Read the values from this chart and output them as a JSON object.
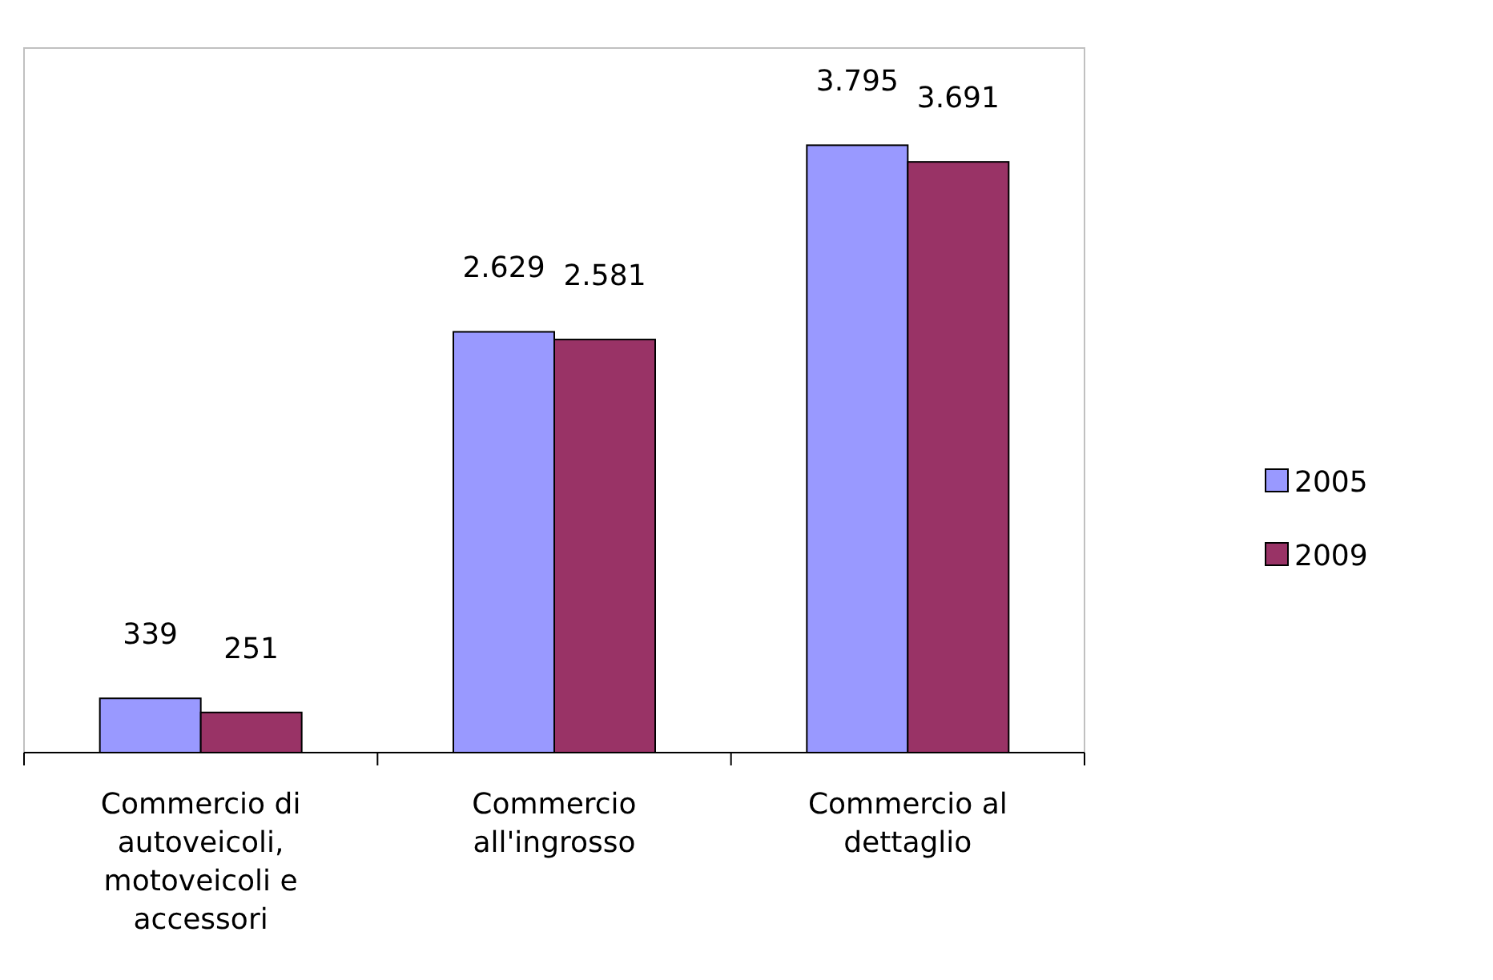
{
  "chart_data": {
    "type": "bar",
    "categories": [
      "Commercio di autoveicoli, motoveicoli e accessori",
      "Commercio all'ingrosso",
      "Commercio al dettaglio"
    ],
    "series": [
      {
        "name": "2005",
        "color": "#9999ff",
        "values": [
          339,
          2629,
          3795
        ],
        "value_labels": [
          "339",
          "2.629",
          "3.795"
        ]
      },
      {
        "name": "2009",
        "color": "#993366",
        "values": [
          251,
          2581,
          3691
        ],
        "value_labels": [
          "251",
          "2.581",
          "3.691"
        ]
      }
    ],
    "legend": "right",
    "grid": false
  }
}
